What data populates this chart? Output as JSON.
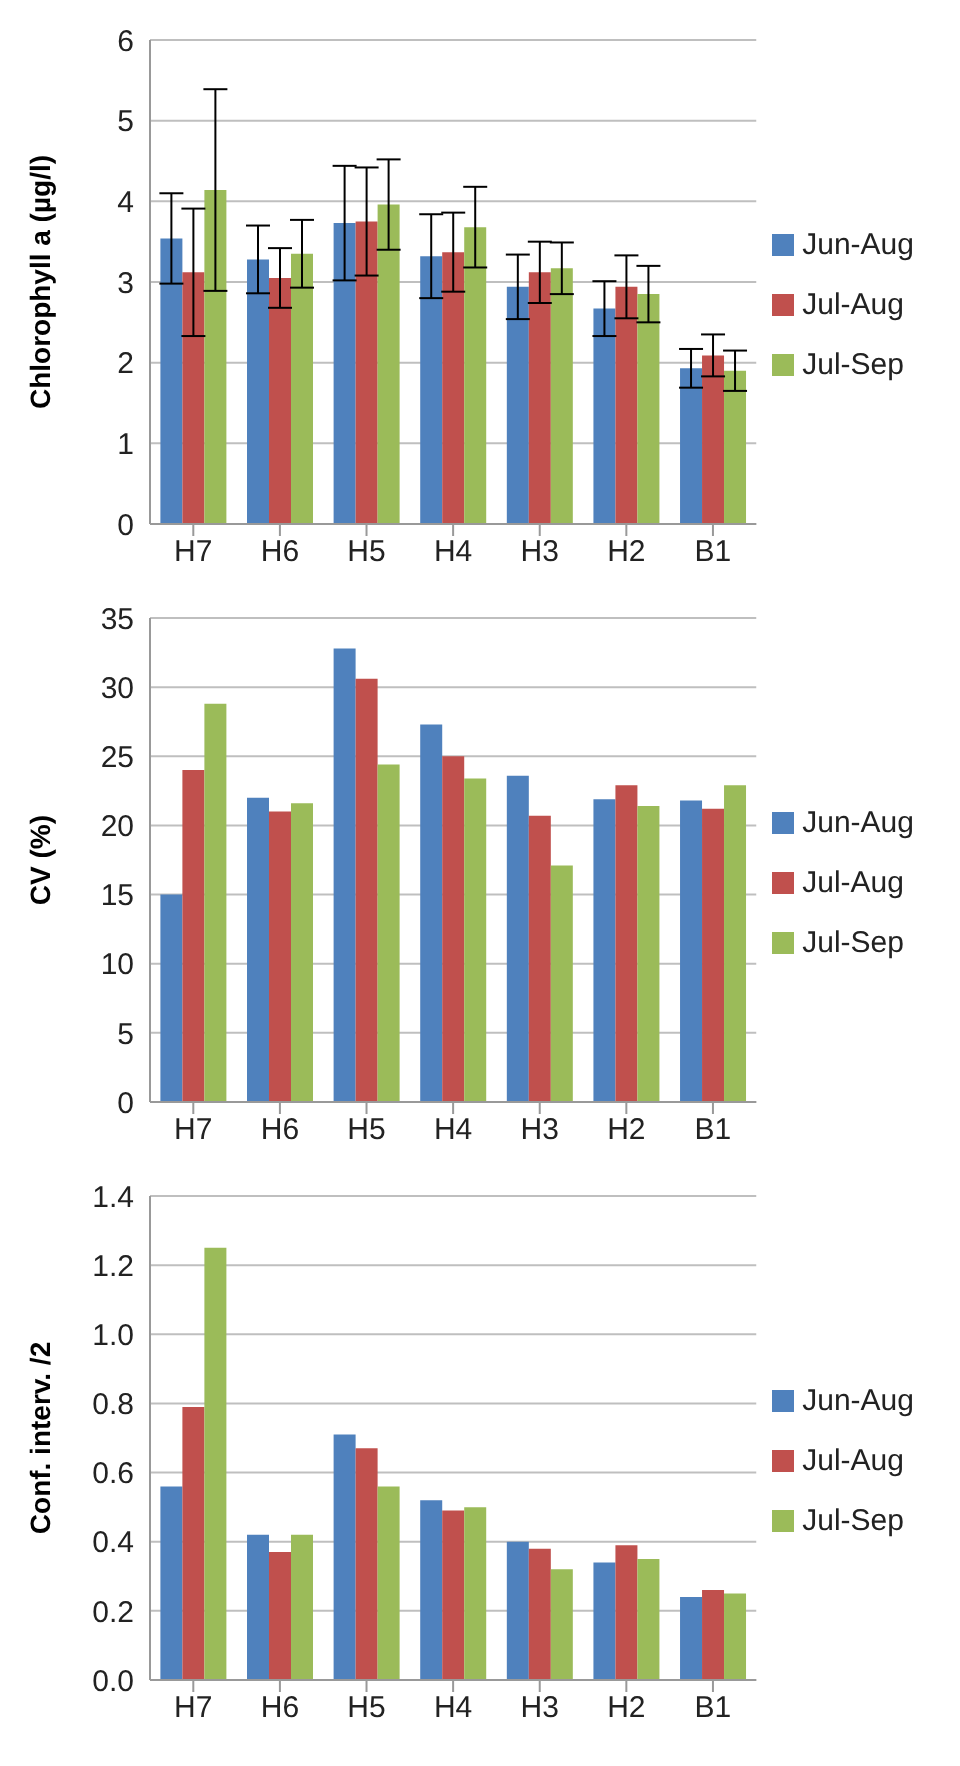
{
  "chart_data": [
    {
      "type": "bar",
      "ylabel": "Chlorophyll a (µg/l)",
      "categories": [
        "H7",
        "H6",
        "H5",
        "H4",
        "H3",
        "H2",
        "B1"
      ],
      "series": [
        {
          "name": "Jun-Aug",
          "color": "#4f81bd",
          "values": [
            3.54,
            3.28,
            3.73,
            3.32,
            2.94,
            2.67,
            1.93
          ],
          "errors": [
            0.56,
            0.42,
            0.71,
            0.52,
            0.4,
            0.34,
            0.24
          ]
        },
        {
          "name": "Jul-Aug",
          "color": "#c0504d",
          "values": [
            3.12,
            3.05,
            3.75,
            3.37,
            3.12,
            2.94,
            2.09
          ],
          "errors": [
            0.79,
            0.37,
            0.67,
            0.49,
            0.38,
            0.39,
            0.26
          ]
        },
        {
          "name": "Jul-Sep",
          "color": "#9bbb59",
          "values": [
            4.14,
            3.35,
            3.96,
            3.68,
            3.17,
            2.85,
            1.9
          ],
          "errors": [
            1.25,
            0.42,
            0.56,
            0.5,
            0.32,
            0.35,
            0.25
          ]
        }
      ],
      "ylim": [
        0,
        6
      ],
      "yticks": [
        0,
        1,
        2,
        3,
        4,
        5,
        6
      ],
      "grid": "y",
      "legend": "right"
    },
    {
      "type": "bar",
      "ylabel": "CV (%)",
      "categories": [
        "H7",
        "H6",
        "H5",
        "H4",
        "H3",
        "H2",
        "B1"
      ],
      "series": [
        {
          "name": "Jun-Aug",
          "color": "#4f81bd",
          "values": [
            15.0,
            22.0,
            32.8,
            27.3,
            23.6,
            21.9,
            21.8
          ]
        },
        {
          "name": "Jul-Aug",
          "color": "#c0504d",
          "values": [
            24.0,
            21.0,
            30.6,
            25.0,
            20.7,
            22.9,
            21.2
          ]
        },
        {
          "name": "Jul-Sep",
          "color": "#9bbb59",
          "values": [
            28.8,
            21.6,
            24.4,
            23.4,
            17.1,
            21.4,
            22.9
          ]
        }
      ],
      "ylim": [
        0,
        35
      ],
      "yticks": [
        0,
        5,
        10,
        15,
        20,
        25,
        30,
        35
      ],
      "grid": "y",
      "legend": "right"
    },
    {
      "type": "bar",
      "ylabel": "Conf. interv. /2",
      "categories": [
        "H7",
        "H6",
        "H5",
        "H4",
        "H3",
        "H2",
        "B1"
      ],
      "series": [
        {
          "name": "Jun-Aug",
          "color": "#4f81bd",
          "values": [
            0.56,
            0.42,
            0.71,
            0.52,
            0.4,
            0.34,
            0.24
          ]
        },
        {
          "name": "Jul-Aug",
          "color": "#c0504d",
          "values": [
            0.79,
            0.37,
            0.67,
            0.49,
            0.38,
            0.39,
            0.26
          ]
        },
        {
          "name": "Jul-Sep",
          "color": "#9bbb59",
          "values": [
            1.25,
            0.42,
            0.56,
            0.5,
            0.32,
            0.35,
            0.25
          ]
        }
      ],
      "ylim": [
        0,
        1.4
      ],
      "yticks": [
        {
          "value": 0,
          "label": "0.0"
        },
        {
          "value": 0.2,
          "label": "0.2"
        },
        {
          "value": 0.4,
          "label": "0.4"
        },
        {
          "value": 0.6,
          "label": "0.6"
        },
        {
          "value": 0.8,
          "label": "0.8"
        },
        {
          "value": 1,
          "label": "1.0"
        },
        {
          "value": 1.2,
          "label": "1.2"
        },
        {
          "value": 1.4,
          "label": "1.4"
        }
      ],
      "grid": "y",
      "legend": "right"
    }
  ]
}
